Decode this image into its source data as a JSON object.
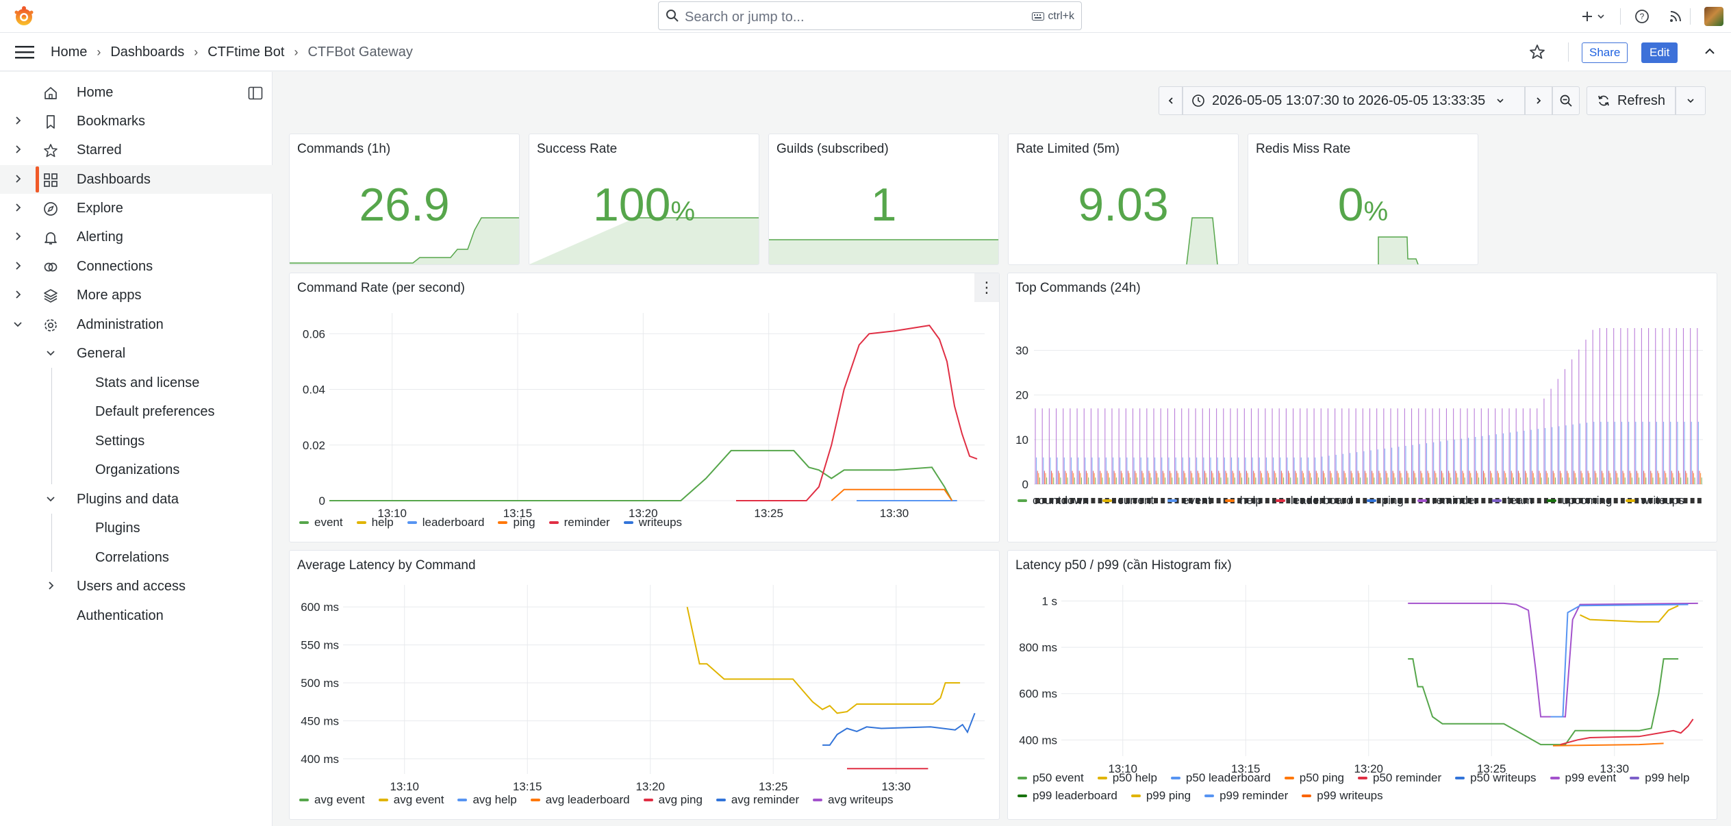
{
  "topbar": {
    "search_placeholder": "Search or jump to...",
    "search_shortcut": "ctrl+k",
    "icons": [
      "grafana-logo-icon",
      "search-icon",
      "keyboard-icon",
      "plus-icon",
      "chevron-down-icon",
      "help-icon",
      "rss-icon",
      "avatar"
    ]
  },
  "breadcrumb": {
    "items": [
      "Home",
      "Dashboards",
      "CTFtime Bot",
      "CTFBot Gateway"
    ],
    "share_label": "Share",
    "edit_label": "Edit"
  },
  "sidebar": {
    "items": [
      {
        "label": "Home",
        "icon": "home-icon"
      },
      {
        "label": "Bookmarks",
        "icon": "bookmark-icon"
      },
      {
        "label": "Starred",
        "icon": "star-icon"
      },
      {
        "label": "Dashboards",
        "icon": "apps-icon"
      },
      {
        "label": "Explore",
        "icon": "compass-icon"
      },
      {
        "label": "Alerting",
        "icon": "bell-icon"
      },
      {
        "label": "Connections",
        "icon": "link-icon"
      },
      {
        "label": "More apps",
        "icon": "layers-icon"
      },
      {
        "label": "Administration",
        "icon": "cog-icon"
      },
      {
        "label": "General"
      },
      {
        "label": "Stats and license"
      },
      {
        "label": "Default preferences"
      },
      {
        "label": "Settings"
      },
      {
        "label": "Organizations"
      },
      {
        "label": "Plugins and data"
      },
      {
        "label": "Plugins"
      },
      {
        "label": "Correlations"
      },
      {
        "label": "Users and access"
      },
      {
        "label": "Authentication"
      }
    ]
  },
  "timepicker": {
    "range": "2026-05-05 13:07:30 to 2026-05-05 13:33:35",
    "refresh_label": "Refresh"
  },
  "colors": {
    "green": "#56a64b",
    "yellow": "#e0b400",
    "blue": "#5794f2",
    "orange": "#ff780a",
    "red": "#e02f44",
    "purple": "#a352cc",
    "darkblue": "#3274d9",
    "darkgreen": "#19730e",
    "lightpurple": "#b877d9",
    "darkorange": "#fa6400"
  },
  "stats": [
    {
      "title": "Commands (1h)",
      "value": "26.9",
      "unit": ""
    },
    {
      "title": "Success Rate",
      "value": "100",
      "unit": "%"
    },
    {
      "title": "Guilds (subscribed)",
      "value": "1",
      "unit": ""
    },
    {
      "title": "Rate Limited (5m)",
      "value": "9.03",
      "unit": ""
    },
    {
      "title": "Redis Miss Rate",
      "value": "0",
      "unit": "%"
    }
  ],
  "chart_data": [
    {
      "type": "line",
      "title": "Command Rate (per second)",
      "x_ticks": [
        "13:10",
        "13:15",
        "13:20",
        "13:25",
        "13:30"
      ],
      "y_ticks": [
        "0",
        "0.02",
        "0.04",
        "0.06"
      ],
      "ylim": [
        0,
        0.065
      ],
      "series": [
        {
          "name": "event",
          "color": "#56a64b",
          "points": [
            [
              7.5,
              0
            ],
            [
              21.5,
              0
            ],
            [
              22.5,
              0.008
            ],
            [
              23.5,
              0.018
            ],
            [
              25.0,
              0.018
            ],
            [
              26.0,
              0.018
            ],
            [
              26.6,
              0.012
            ],
            [
              27.0,
              0.011
            ],
            [
              27.5,
              0.008
            ],
            [
              28.0,
              0.011
            ],
            [
              30.0,
              0.011
            ],
            [
              31.5,
              0.012
            ],
            [
              32.0,
              0.005
            ],
            [
              32.3,
              0
            ]
          ]
        },
        {
          "name": "help",
          "color": "#e0b400",
          "points": []
        },
        {
          "name": "leaderboard",
          "color": "#5794f2",
          "points": [
            [
              28.5,
              0
            ],
            [
              32.5,
              0
            ]
          ]
        },
        {
          "name": "ping",
          "color": "#ff780a",
          "points": [
            [
              27.5,
              0
            ],
            [
              28.0,
              0.004
            ],
            [
              32.0,
              0.004
            ],
            [
              32.3,
              0
            ]
          ]
        },
        {
          "name": "reminder",
          "color": "#e02f44",
          "points": [
            [
              23.7,
              0
            ],
            [
              26.5,
              0
            ],
            [
              27.0,
              0.005
            ],
            [
              27.5,
              0.02
            ],
            [
              28.0,
              0.04
            ],
            [
              28.6,
              0.056
            ],
            [
              29.0,
              0.06
            ],
            [
              30.0,
              0.061
            ],
            [
              31.4,
              0.063
            ],
            [
              31.8,
              0.058
            ],
            [
              32.1,
              0.05
            ],
            [
              32.4,
              0.034
            ],
            [
              32.7,
              0.024
            ],
            [
              33.0,
              0.016
            ],
            [
              33.3,
              0.015
            ]
          ]
        },
        {
          "name": "writeups",
          "color": "#3274d9",
          "points": []
        }
      ]
    },
    {
      "type": "bar",
      "title": "Top Commands (24h)",
      "y_ticks": [
        "0",
        "10",
        "20",
        "30"
      ],
      "ylim": [
        0,
        35
      ],
      "series": [
        {
          "name": "countdown",
          "color": "#56a64b"
        },
        {
          "name": "current",
          "color": "#e0b400"
        },
        {
          "name": "event",
          "color": "#5794f2"
        },
        {
          "name": "help",
          "color": "#ff780a"
        },
        {
          "name": "leaderboard",
          "color": "#e02f44"
        },
        {
          "name": "ping",
          "color": "#3274d9"
        },
        {
          "name": "reminder",
          "color": "#a352cc"
        },
        {
          "name": "team",
          "color": "#7c5fc9"
        },
        {
          "name": "upcoming",
          "color": "#19730e"
        },
        {
          "name": "writeups",
          "color": "#e0b400"
        }
      ]
    },
    {
      "type": "line",
      "title": "Average Latency by Command",
      "x_ticks": [
        "13:10",
        "13:15",
        "13:20",
        "13:25",
        "13:30"
      ],
      "y_ticks": [
        "400 ms",
        "450 ms",
        "500 ms",
        "550 ms",
        "600 ms"
      ],
      "ylim": [
        380,
        620
      ],
      "series": [
        {
          "name": "avg event",
          "color": "#56a64b",
          "points": []
        },
        {
          "name": "avg event",
          "color": "#e0b400",
          "points": [
            [
              21.5,
              600
            ],
            [
              22.0,
              525
            ],
            [
              22.3,
              525
            ],
            [
              23.0,
              505
            ],
            [
              24.0,
              505
            ],
            [
              25.0,
              505
            ],
            [
              25.8,
              505
            ],
            [
              26.2,
              490
            ],
            [
              26.6,
              475
            ],
            [
              27.0,
              465
            ],
            [
              27.3,
              470
            ],
            [
              27.6,
              460
            ],
            [
              28.0,
              462
            ],
            [
              28.4,
              472
            ],
            [
              30.0,
              472
            ],
            [
              31.5,
              472
            ],
            [
              31.8,
              480
            ],
            [
              32.0,
              500
            ],
            [
              32.6,
              500
            ]
          ]
        },
        {
          "name": "avg help",
          "color": "#5794f2",
          "points": []
        },
        {
          "name": "avg leaderboard",
          "color": "#ff780a",
          "points": []
        },
        {
          "name": "avg ping",
          "color": "#e02f44",
          "points": [
            [
              28.0,
              387
            ],
            [
              31.3,
              387
            ]
          ]
        },
        {
          "name": "avg reminder",
          "color": "#3274d9",
          "points": [
            [
              27.0,
              418
            ],
            [
              27.3,
              418
            ],
            [
              27.6,
              432
            ],
            [
              28.0,
              440
            ],
            [
              28.4,
              436
            ],
            [
              28.8,
              442
            ],
            [
              29.4,
              440
            ],
            [
              31.4,
              442
            ],
            [
              32.4,
              438
            ],
            [
              32.7,
              445
            ],
            [
              32.9,
              435
            ],
            [
              33.2,
              460
            ]
          ]
        },
        {
          "name": "avg writeups",
          "color": "#a352cc",
          "points": []
        }
      ]
    },
    {
      "type": "line",
      "title": "Latency p50 / p99 (cần Histogram fix)",
      "x_ticks": [
        "13:10",
        "13:15",
        "13:20",
        "13:25",
        "13:30"
      ],
      "y_ticks": [
        "400 ms",
        "600 ms",
        "800 ms",
        "1 s"
      ],
      "ylim": [
        330,
        1040
      ],
      "series": [
        {
          "name": "p50 event",
          "color": "#56a64b",
          "points": [
            [
              21.6,
              750
            ],
            [
              21.8,
              750
            ],
            [
              22.0,
              630
            ],
            [
              22.2,
              630
            ],
            [
              22.6,
              500
            ],
            [
              23.0,
              470
            ],
            [
              25.5,
              470
            ],
            [
              26.0,
              440
            ],
            [
              27.0,
              380
            ],
            [
              28.0,
              380
            ],
            [
              28.4,
              440
            ],
            [
              31.0,
              440
            ],
            [
              31.5,
              450
            ],
            [
              31.8,
              600
            ],
            [
              32.0,
              750
            ],
            [
              32.6,
              750
            ]
          ]
        },
        {
          "name": "p50 help",
          "color": "#e0b400",
          "points": []
        },
        {
          "name": "p50 leaderboard",
          "color": "#5794f2",
          "points": []
        },
        {
          "name": "p50 ping",
          "color": "#ff780a",
          "points": [
            [
              27.5,
              375
            ],
            [
              31.0,
              380
            ],
            [
              32.0,
              385
            ]
          ]
        },
        {
          "name": "p50 reminder",
          "color": "#e02f44",
          "points": [
            [
              27.8,
              380
            ],
            [
              28.5,
              400
            ],
            [
              29.0,
              410
            ],
            [
              31.0,
              415
            ],
            [
              32.4,
              440
            ],
            [
              32.7,
              430
            ],
            [
              33.0,
              460
            ],
            [
              33.2,
              490
            ]
          ]
        },
        {
          "name": "p50 writeups",
          "color": "#3274d9",
          "points": []
        },
        {
          "name": "p99 event",
          "color": "#a352cc",
          "points": [
            [
              21.6,
              990
            ],
            [
              22.0,
              990
            ],
            [
              25.5,
              990
            ],
            [
              26.0,
              985
            ],
            [
              26.5,
              960
            ],
            [
              26.8,
              700
            ],
            [
              27.0,
              500
            ],
            [
              28.0,
              500
            ],
            [
              28.3,
              920
            ],
            [
              28.6,
              985
            ],
            [
              33.4,
              990
            ]
          ]
        },
        {
          "name": "p99 help",
          "color": "#7c5fc9",
          "points": []
        },
        {
          "name": "p99 leaderboard",
          "color": "#19730e",
          "points": []
        },
        {
          "name": "p99 ping",
          "color": "#e0b400",
          "points": [
            [
              28.6,
              940
            ],
            [
              29.0,
              920
            ],
            [
              31.0,
              910
            ],
            [
              31.8,
              910
            ],
            [
              32.2,
              960
            ],
            [
              32.6,
              980
            ]
          ]
        },
        {
          "name": "p99 reminder",
          "color": "#5794f2",
          "points": [
            [
              27.4,
              500
            ],
            [
              27.9,
              500
            ],
            [
              28.1,
              950
            ],
            [
              28.6,
              980
            ],
            [
              33.0,
              985
            ]
          ]
        },
        {
          "name": "p99 writeups",
          "color": "#fa6400",
          "points": []
        }
      ]
    }
  ]
}
